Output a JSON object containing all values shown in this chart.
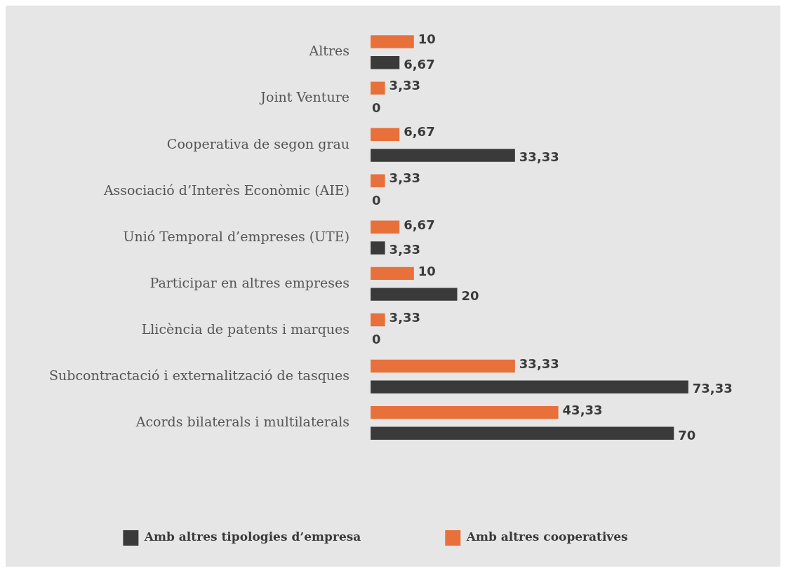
{
  "chart_data": {
    "type": "bar",
    "orientation": "horizontal",
    "categories": [
      "Altres",
      "Joint Venture",
      "Cooperativa de segon grau",
      "Associació d’Interès Econòmic (AIE)",
      "Unió Temporal d’empreses (UTE)",
      "Participar en altres empreses",
      "Llicència de patents i marques",
      "Subcontractació i externalització de tasques",
      "Acords bilaterals i multilaterals"
    ],
    "series": [
      {
        "name": "Amb altres cooperatives",
        "color": "#e8703a",
        "values": [
          10,
          3.33,
          6.67,
          3.33,
          6.67,
          10,
          3.33,
          33.33,
          43.33
        ],
        "value_labels": [
          "10",
          "3,33",
          "6,67",
          "3,33",
          "6,67",
          "10",
          "3,33",
          "33,33",
          "43,33"
        ]
      },
      {
        "name": "Amb altres tipologies d’empresa",
        "color": "#3a3a3a",
        "values": [
          6.67,
          0,
          33.33,
          0,
          3.33,
          20,
          0,
          73.33,
          70
        ],
        "value_labels": [
          "6,67",
          "0",
          "33,33",
          "0",
          "3,33",
          "20",
          "0",
          "73,33",
          "70"
        ]
      }
    ],
    "tick_labels": "y",
    "grid": false,
    "legend": "bottom"
  }
}
